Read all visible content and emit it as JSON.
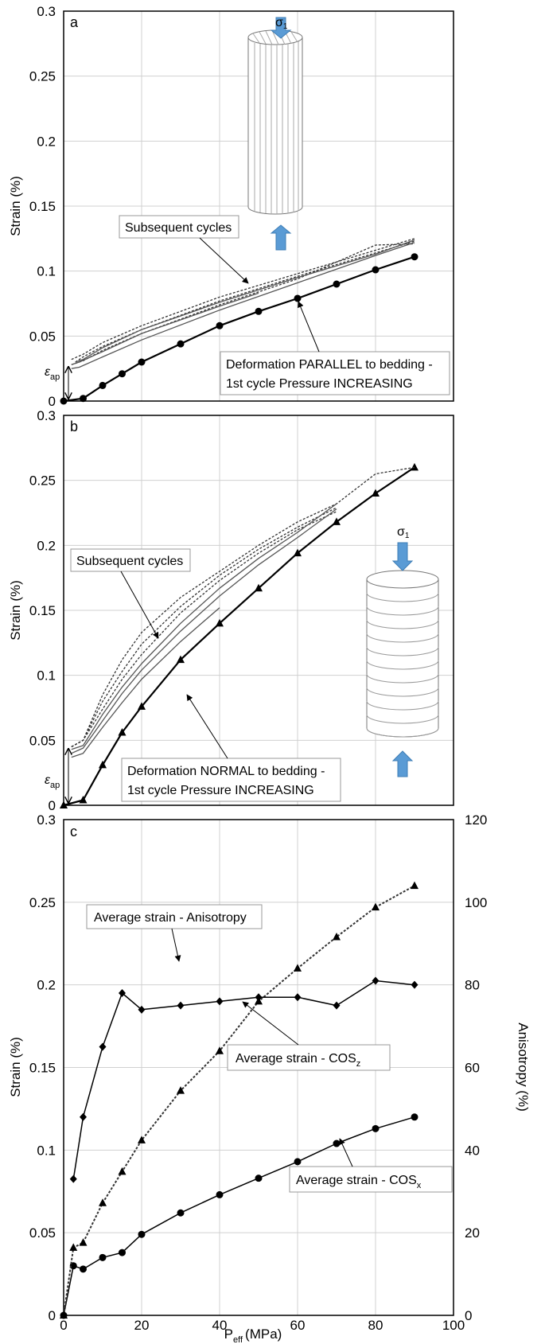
{
  "chart_data": [
    {
      "panel": "a",
      "type": "line",
      "ylabel": "Strain (%)",
      "xlim": [
        0,
        100
      ],
      "ylim": [
        0,
        0.3
      ],
      "yticks": [
        "0",
        "0.05",
        "0.1",
        "0.15",
        "0.2",
        "0.25",
        "0.3"
      ],
      "grid": true,
      "series": [
        {
          "x": [
            0,
            5,
            10,
            15,
            20,
            30,
            40,
            50,
            60,
            70,
            80,
            90
          ],
          "values": [
            0,
            0.002,
            0.012,
            0.021,
            0.03,
            0.044,
            0.058,
            0.069,
            0.079,
            0.09,
            0.101,
            0.111
          ],
          "marker": "circle",
          "style": "solid-bold"
        },
        {
          "x": [
            2,
            5,
            10,
            20,
            40,
            60,
            80,
            90
          ],
          "values": [
            0.032,
            0.036,
            0.045,
            0.058,
            0.08,
            0.098,
            0.116,
            0.125
          ],
          "style": "dotted"
        },
        {
          "x": [
            3,
            5,
            10,
            20,
            40,
            60,
            80,
            90
          ],
          "values": [
            0.03,
            0.034,
            0.042,
            0.055,
            0.077,
            0.096,
            0.114,
            0.123
          ],
          "style": "dotted"
        },
        {
          "x": [
            2,
            5,
            10,
            20,
            40,
            60,
            80,
            90
          ],
          "values": [
            0.028,
            0.031,
            0.039,
            0.052,
            0.074,
            0.094,
            0.12,
            0.121
          ],
          "style": "dotted"
        },
        {
          "x": [
            2,
            4,
            10,
            20,
            40,
            50
          ],
          "values": [
            0.028,
            0.03,
            0.038,
            0.052,
            0.073,
            0.083
          ],
          "style": "solid"
        },
        {
          "x": [
            2,
            4,
            10,
            20,
            40,
            60,
            80,
            90
          ],
          "values": [
            0.025,
            0.026,
            0.034,
            0.047,
            0.07,
            0.091,
            0.112,
            0.122
          ],
          "style": "solid"
        },
        {
          "x": [
            3,
            5,
            10,
            20,
            40,
            60,
            80,
            90
          ],
          "values": [
            0.03,
            0.032,
            0.041,
            0.055,
            0.076,
            0.095,
            0.113,
            0.124
          ],
          "style": "solid"
        }
      ],
      "annotations": [
        "Subsequent cycles",
        "Deformation PARALLEL to bedding -",
        "1st cycle Pressure INCREASING"
      ],
      "epsilon_label": "ε",
      "epsilon_sub": "ap",
      "sigma_label": "σ",
      "sigma_sub": "1"
    },
    {
      "panel": "b",
      "type": "line",
      "ylabel": "Strain (%)",
      "xlim": [
        0,
        100
      ],
      "ylim": [
        0,
        0.3
      ],
      "yticks": [
        "0",
        "0.05",
        "0.1",
        "0.15",
        "0.2",
        "0.25",
        "0.3"
      ],
      "grid": true,
      "series": [
        {
          "x": [
            0,
            5,
            10,
            15,
            20,
            30,
            40,
            50,
            60,
            70,
            80,
            90
          ],
          "values": [
            0,
            0.004,
            0.031,
            0.056,
            0.076,
            0.112,
            0.14,
            0.167,
            0.194,
            0.218,
            0.24,
            0.26
          ],
          "marker": "triangle",
          "style": "solid-bold"
        },
        {
          "x": [
            2,
            5,
            10,
            15,
            20,
            30,
            40,
            50,
            60,
            70,
            80,
            90
          ],
          "values": [
            0.045,
            0.05,
            0.085,
            0.112,
            0.133,
            0.16,
            0.18,
            0.2,
            0.218,
            0.232,
            0.255,
            0.26
          ],
          "style": "dotted"
        },
        {
          "x": [
            2,
            5,
            10,
            15,
            20,
            30,
            40,
            50,
            60,
            70
          ],
          "values": [
            0.045,
            0.05,
            0.08,
            0.103,
            0.124,
            0.153,
            0.177,
            0.197,
            0.214,
            0.229
          ],
          "style": "dotted"
        },
        {
          "x": [
            2,
            5,
            10,
            15,
            20,
            30,
            40,
            50,
            60,
            70
          ],
          "values": [
            0.045,
            0.05,
            0.074,
            0.097,
            0.116,
            0.148,
            0.173,
            0.194,
            0.212,
            0.226
          ],
          "style": "dotted"
        },
        {
          "x": [
            2,
            5,
            10,
            15,
            20,
            30,
            40,
            50,
            60,
            70
          ],
          "values": [
            0.043,
            0.046,
            0.07,
            0.091,
            0.109,
            0.14,
            0.167,
            0.19,
            0.21,
            0.232
          ],
          "style": "solid"
        },
        {
          "x": [
            2,
            5,
            10,
            15,
            20,
            30,
            40,
            50,
            60,
            70
          ],
          "values": [
            0.04,
            0.044,
            0.065,
            0.086,
            0.104,
            0.134,
            0.161,
            0.185,
            0.206,
            0.228
          ],
          "style": "solid"
        },
        {
          "x": [
            2,
            5,
            10,
            15,
            20,
            30,
            40
          ],
          "values": [
            0.037,
            0.04,
            0.06,
            0.079,
            0.097,
            0.126,
            0.152
          ],
          "style": "solid"
        }
      ],
      "annotations": [
        "Subsequent cycles",
        "Deformation NORMAL to bedding -",
        "1st cycle Pressure INCREASING"
      ],
      "epsilon_label": "ε",
      "epsilon_sub": "ap",
      "sigma_label": "σ",
      "sigma_sub": "1"
    },
    {
      "panel": "c",
      "type": "line",
      "ylabel": "Strain (%)",
      "y2label": "Anisotropy (%)",
      "xlabel": "P",
      "xlabel_sub": "eff",
      "xlabel_unit": "(MPa)",
      "xlim": [
        0,
        100
      ],
      "ylim": [
        0,
        0.3
      ],
      "y2lim": [
        0,
        120
      ],
      "xticks": [
        "0",
        "20",
        "40",
        "60",
        "80",
        "100"
      ],
      "yticks": [
        "0",
        "0.05",
        "0.1",
        "0.15",
        "0.2",
        "0.25",
        "0.3"
      ],
      "y2ticks": [
        "0",
        "20",
        "40",
        "60",
        "80",
        "100",
        "120"
      ],
      "grid": true,
      "series": [
        {
          "x": [
            0,
            2.5,
            5,
            10,
            15,
            20,
            30,
            40,
            50,
            60,
            70,
            80,
            90
          ],
          "values": [
            0,
            0.03,
            0.028,
            0.035,
            0.038,
            0.049,
            0.062,
            0.073,
            0.083,
            0.093,
            0.104,
            0.113,
            0.12
          ],
          "marker": "circle",
          "style": "solid",
          "axis": "left"
        },
        {
          "x": [
            0,
            2.5,
            5,
            10,
            15,
            20,
            30,
            40,
            50,
            60,
            70,
            80,
            90
          ],
          "values": [
            0,
            0.041,
            0.044,
            0.068,
            0.087,
            0.106,
            0.136,
            0.16,
            0.19,
            0.21,
            0.229,
            0.247,
            0.26
          ],
          "marker": "triangle",
          "style": "dotted",
          "axis": "left"
        },
        {
          "x": [
            2.5,
            5,
            10,
            15,
            20,
            30,
            40,
            50,
            60,
            70,
            80,
            90
          ],
          "values": [
            33,
            48,
            65,
            78,
            74,
            75,
            76,
            77,
            77,
            75,
            81,
            80
          ],
          "marker": "diamond",
          "style": "solid",
          "axis": "right"
        }
      ],
      "annotations": [
        "Average strain - Anisotropy",
        "Average strain - COS",
        "z",
        "Average strain - COS",
        "x"
      ]
    }
  ],
  "panel_letters": [
    "a",
    "b",
    "c"
  ]
}
